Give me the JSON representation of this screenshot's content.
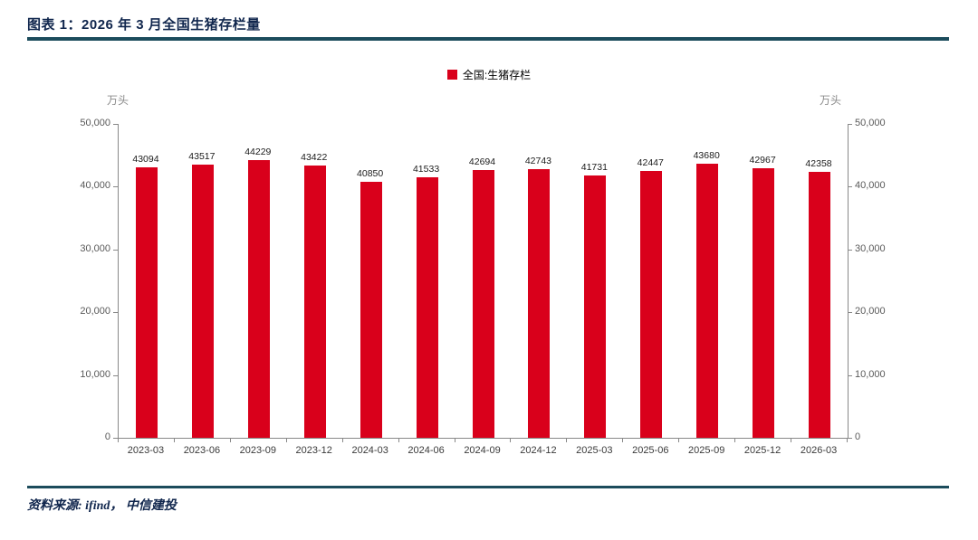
{
  "header": {
    "title": "图表 1：2026 年 3 月全国生猪存栏量"
  },
  "legend": {
    "label": "全国:生猪存栏"
  },
  "axis": {
    "unit_left": "万头",
    "unit_right": "万头"
  },
  "footer": {
    "source": "资料来源: ifind， 中信建投"
  },
  "colors": {
    "bar": "#d9001b",
    "accent_rule": "#1c4c5c"
  },
  "chart_data": {
    "type": "bar",
    "title": "图表 1：2026 年 3 月全国生猪存栏量",
    "categories": [
      "2023-03",
      "2023-06",
      "2023-09",
      "2023-12",
      "2024-03",
      "2024-06",
      "2024-09",
      "2024-12",
      "2025-03",
      "2025-06",
      "2025-09",
      "2025-12",
      "2026-03"
    ],
    "values": [
      43094,
      43517,
      44229,
      43422,
      40850,
      41533,
      42694,
      42743,
      41731,
      42447,
      43680,
      42967,
      42358
    ],
    "series_name": "全国:生猪存栏",
    "xlabel": "",
    "ylabel": "万头",
    "ylim": [
      0,
      50000
    ],
    "yticks": [
      0,
      10000,
      20000,
      30000,
      40000,
      50000
    ],
    "grid": false,
    "legend_position": "top-center",
    "bar_color": "#d9001b",
    "value_labels": true
  }
}
